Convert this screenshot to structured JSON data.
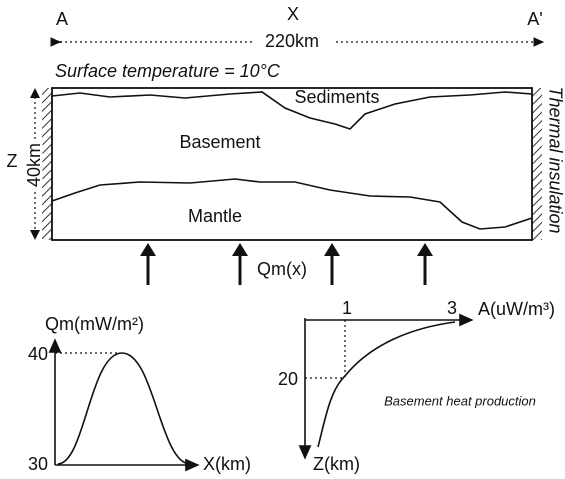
{
  "section": {
    "left_label": "A",
    "center_label": "X",
    "right_label": "A'",
    "width_label": "220km",
    "surface_label": "Surface temperature = 10°C",
    "layers": [
      "Sediments",
      "Basement",
      "Mantle"
    ],
    "depth_axis": "Z",
    "depth_label": "40km",
    "side_label": "Thermal insulation",
    "flux_label": "Qm(x)"
  },
  "flux_plot": {
    "y_title": "Qm(mW/m²)",
    "y_max_label": "40",
    "y_min_label": "30",
    "x_title": "X(km)"
  },
  "heat_plot": {
    "x_title": "A(uW/m³)",
    "x_labels": [
      "1",
      "3"
    ],
    "y_label": "20",
    "y_title": "Z(km)",
    "caption": "Basement heat production"
  }
}
